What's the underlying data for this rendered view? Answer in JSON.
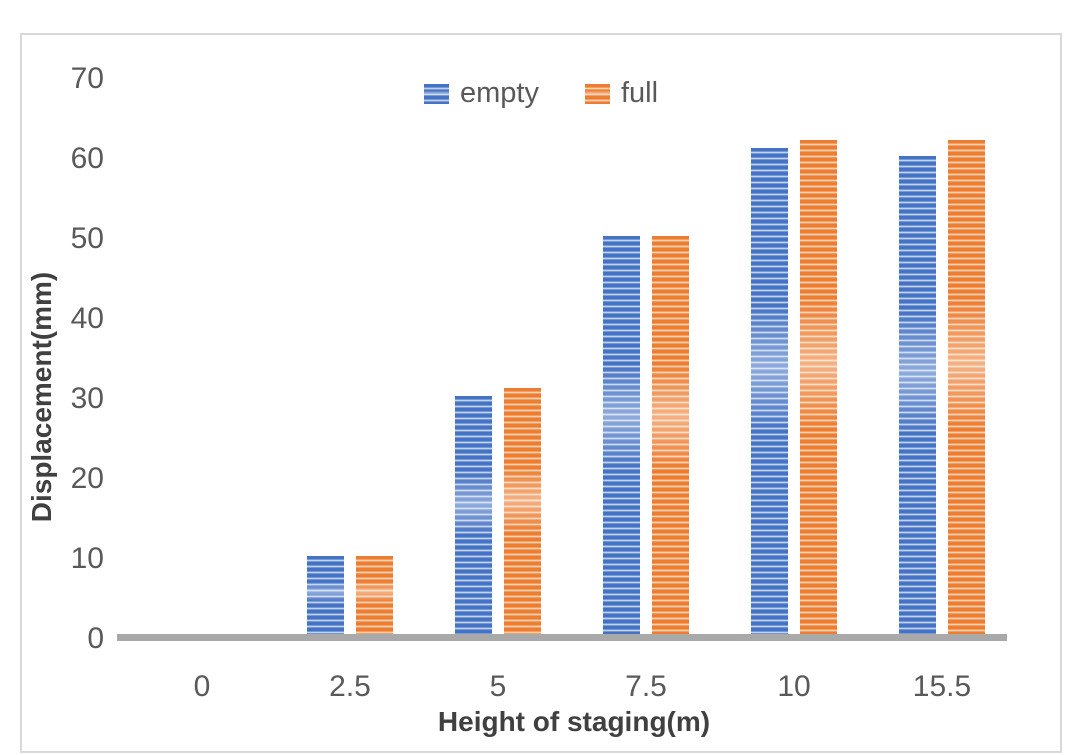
{
  "chart_data": {
    "type": "bar",
    "title": "",
    "categories": [
      "0",
      "2.5",
      "5",
      "7.5",
      "10",
      "15.5"
    ],
    "series": [
      {
        "name": "empty",
        "color": "#4472C4",
        "stripe_light": "#dce6f5",
        "values": [
          0,
          10,
          30,
          50,
          61,
          60
        ]
      },
      {
        "name": "full",
        "color": "#ED7D31",
        "stripe_light": "#fce3d0",
        "values": [
          0,
          10,
          31,
          50,
          62,
          62
        ]
      }
    ],
    "xlabel": "Height of staging(m)",
    "ylabel": "Displacement(mm)",
    "ylim": [
      0,
      70
    ],
    "yticks": [
      0,
      10,
      20,
      30,
      40,
      50,
      60,
      70
    ],
    "grid": false,
    "legend_position": "top-center",
    "bar_fill_style": "horizontal-stripes",
    "colors": {
      "axis_line": "#a9a9a9",
      "tick_text": "#595959",
      "axis_title_text": "#404040",
      "frame_border": "#d9d9d9",
      "background": "#ffffff"
    }
  }
}
